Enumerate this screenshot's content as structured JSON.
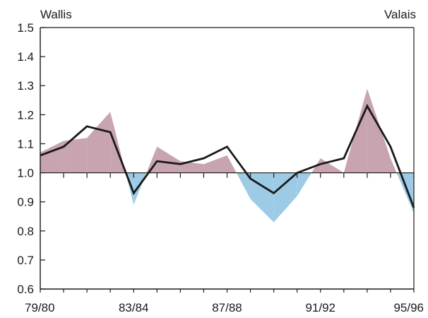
{
  "chart_data": {
    "type": "area",
    "title": "",
    "labels": {
      "left": "Wallis",
      "right": "Valais"
    },
    "baseline": 1.0,
    "ylim": [
      0.6,
      1.5
    ],
    "yticks": [
      "0.6",
      "0.7",
      "0.8",
      "0.9",
      "1.0",
      "1.1",
      "1.2",
      "1.3",
      "1.4",
      "1.5"
    ],
    "xticks": [
      "79/80",
      "83/84",
      "87/88",
      "91/92",
      "95/96"
    ],
    "periods": [
      "79/80",
      "80/81",
      "81/82",
      "82/83",
      "83/84",
      "84/85",
      "85/86",
      "86/87",
      "87/88",
      "88/89",
      "89/90",
      "90/91",
      "91/92",
      "92/93",
      "93/94",
      "94/95",
      "95/96"
    ],
    "series": [
      {
        "type": "area",
        "values": [
          1.07,
          1.11,
          1.12,
          1.21,
          0.89,
          1.09,
          1.04,
          1.03,
          1.06,
          0.91,
          0.83,
          0.92,
          1.05,
          1.0,
          1.29,
          1.05,
          0.86
        ]
      },
      {
        "type": "line",
        "values": [
          1.06,
          1.09,
          1.16,
          1.14,
          0.93,
          1.04,
          1.03,
          1.05,
          1.09,
          0.98,
          0.93,
          1.0,
          1.03,
          1.05,
          1.23,
          1.09,
          0.88
        ]
      }
    ],
    "colors": {
      "above": "#c8a3b0",
      "below": "#9dcbe6",
      "line": "#1a1a1a",
      "axis": "#1a1a1a"
    },
    "grid": false,
    "legend": "none"
  }
}
